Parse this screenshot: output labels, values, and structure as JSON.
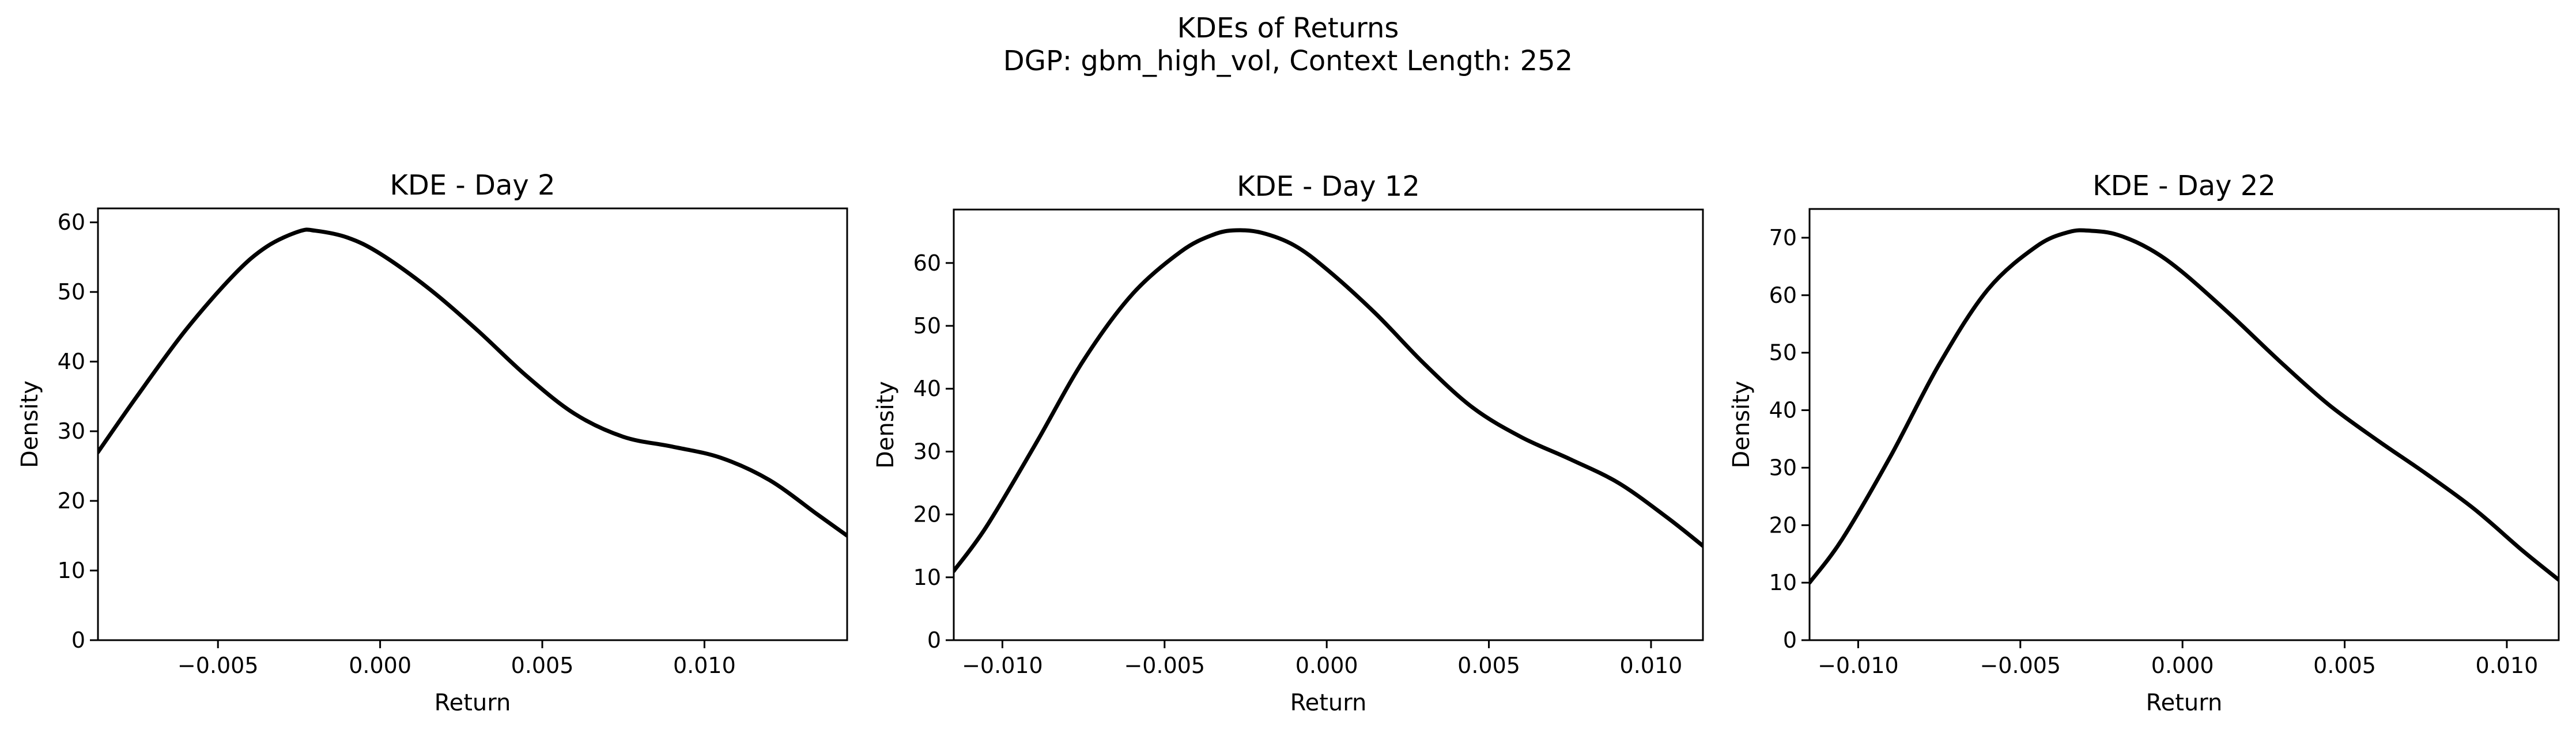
{
  "figure": {
    "title_line1": "KDEs of Returns",
    "title_line2": "DGP: gbm_high_vol, Context Length: 252"
  },
  "colors": {
    "line": "#000000",
    "background": "#ffffff"
  },
  "chart_data": [
    {
      "type": "line",
      "title": "KDE - Day 2",
      "xlabel": "Return",
      "ylabel": "Density",
      "xlim": [
        -0.0087,
        0.0144
      ],
      "ylim": [
        0,
        62
      ],
      "xticks": [
        -0.005,
        0.0,
        0.005,
        0.01
      ],
      "xtick_labels": [
        "−0.005",
        "0.000",
        "0.005",
        "0.010"
      ],
      "yticks": [
        0,
        10,
        20,
        30,
        40,
        50,
        60
      ],
      "ytick_labels": [
        "0",
        "10",
        "20",
        "30",
        "40",
        "50",
        "60"
      ],
      "grid": false,
      "series": [
        {
          "x": [
            -0.0087,
            -0.0075,
            -0.006,
            -0.0045,
            -0.0035,
            -0.0025,
            -0.002,
            -0.001,
            0.0,
            0.0015,
            0.003,
            0.0045,
            0.006,
            0.0075,
            0.009,
            0.0105,
            0.012,
            0.0135,
            0.0144
          ],
          "y": [
            27,
            35,
            44.5,
            52.5,
            56.5,
            58.7,
            58.8,
            57.8,
            55.5,
            50.5,
            44.5,
            38,
            32.5,
            29.2,
            27.8,
            26.2,
            23,
            18,
            15
          ]
        }
      ]
    },
    {
      "type": "line",
      "title": "KDE - Day 12",
      "xlabel": "Return",
      "ylabel": "Density",
      "xlim": [
        -0.0115,
        0.0116
      ],
      "ylim": [
        0,
        68.5
      ],
      "xticks": [
        -0.01,
        -0.005,
        0.0,
        0.005,
        0.01
      ],
      "xtick_labels": [
        "−0.010",
        "−0.005",
        "0.000",
        "0.005",
        "0.010"
      ],
      "yticks": [
        0,
        10,
        20,
        30,
        40,
        50,
        60
      ],
      "ytick_labels": [
        "0",
        "10",
        "20",
        "30",
        "40",
        "50",
        "60"
      ],
      "grid": false,
      "series": [
        {
          "x": [
            -0.0115,
            -0.0105,
            -0.009,
            -0.0075,
            -0.006,
            -0.0045,
            -0.0035,
            -0.0028,
            -0.002,
            -0.001,
            0.0,
            0.0015,
            0.003,
            0.0045,
            0.006,
            0.0075,
            0.009,
            0.0105,
            0.0116
          ],
          "y": [
            11,
            18,
            31,
            44.5,
            55,
            61.8,
            64.5,
            65.2,
            64.8,
            62.8,
            59,
            52,
            44,
            37,
            32.3,
            28.8,
            25,
            19.5,
            15
          ]
        }
      ]
    },
    {
      "type": "line",
      "title": "KDE - Day 22",
      "xlabel": "Return",
      "ylabel": "Density",
      "xlim": [
        -0.0115,
        0.0116
      ],
      "ylim": [
        0,
        75
      ],
      "xticks": [
        -0.01,
        -0.005,
        0.0,
        0.005,
        0.01
      ],
      "xtick_labels": [
        "−0.010",
        "−0.005",
        "0.000",
        "0.005",
        "0.010"
      ],
      "yticks": [
        0,
        10,
        20,
        30,
        40,
        50,
        60,
        70
      ],
      "ytick_labels": [
        "0",
        "10",
        "20",
        "30",
        "40",
        "50",
        "60",
        "70"
      ],
      "grid": false,
      "series": [
        {
          "x": [
            -0.0115,
            -0.0105,
            -0.009,
            -0.0075,
            -0.006,
            -0.0045,
            -0.0035,
            -0.0028,
            -0.002,
            -0.001,
            0.0,
            0.0015,
            0.003,
            0.0045,
            0.006,
            0.0075,
            0.009,
            0.0105,
            0.0116
          ],
          "y": [
            10,
            17.5,
            32,
            48,
            61,
            68.5,
            71,
            71.2,
            70.5,
            68,
            64,
            56.5,
            48.5,
            41,
            34.8,
            29,
            22.8,
            15.5,
            10.5
          ]
        }
      ]
    }
  ]
}
